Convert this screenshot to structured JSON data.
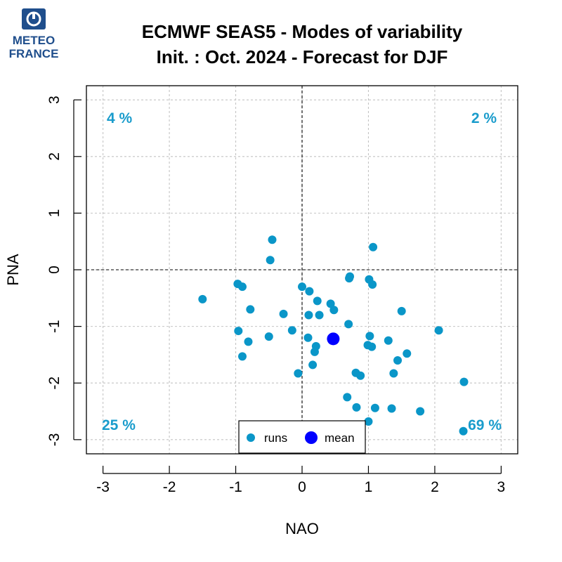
{
  "logo": {
    "line1": "METEO",
    "line2": "FRANCE",
    "color": "#1f4e8c"
  },
  "chart_data": {
    "type": "scatter",
    "title_line1": "ECMWF SEAS5 - Modes of variability",
    "title_line2": "Init. : Oct. 2024 - Forecast for DJF",
    "xlabel": "NAO",
    "ylabel": "PNA",
    "xlim": [
      -3.25,
      3.25
    ],
    "ylim": [
      -3.25,
      3.25
    ],
    "xticks": [
      -3,
      -2,
      -1,
      0,
      1,
      2,
      3
    ],
    "yticks": [
      -3,
      -2,
      -1,
      0,
      1,
      2,
      3
    ],
    "grid": true,
    "reference_lines": {
      "x": 0,
      "y": 0
    },
    "quadrant_labels": {
      "top_left": "4 %",
      "top_right": "2 %",
      "bottom_left": "25 %",
      "bottom_right": "69 %"
    },
    "legend": {
      "position": "bottom-center",
      "runs_label": "runs",
      "mean_label": "mean"
    },
    "colors": {
      "runs": "#0a96c8",
      "mean": "#0000ff",
      "quadrant_text": "#1a9ccc",
      "grid": "#c4c4c4"
    },
    "series": [
      {
        "name": "runs",
        "points": [
          {
            "x": -1.5,
            "y": -0.52
          },
          {
            "x": -0.97,
            "y": -0.25
          },
          {
            "x": -0.9,
            "y": -0.3
          },
          {
            "x": -0.78,
            "y": -0.7
          },
          {
            "x": -0.96,
            "y": -1.08
          },
          {
            "x": -0.81,
            "y": -1.27
          },
          {
            "x": -0.9,
            "y": -1.53
          },
          {
            "x": -0.5,
            "y": -1.18
          },
          {
            "x": -0.28,
            "y": -0.78
          },
          {
            "x": -0.15,
            "y": -1.07
          },
          {
            "x": -0.48,
            "y": 0.17
          },
          {
            "x": -0.45,
            "y": 0.53
          },
          {
            "x": 0.0,
            "y": -0.3
          },
          {
            "x": 0.11,
            "y": -0.38
          },
          {
            "x": 0.1,
            "y": -0.8
          },
          {
            "x": 0.23,
            "y": -0.55
          },
          {
            "x": 0.26,
            "y": -0.8
          },
          {
            "x": 0.43,
            "y": -0.6
          },
          {
            "x": 0.48,
            "y": -0.71
          },
          {
            "x": 0.09,
            "y": -1.2
          },
          {
            "x": 0.21,
            "y": -1.35
          },
          {
            "x": 0.19,
            "y": -1.45
          },
          {
            "x": 0.16,
            "y": -1.68
          },
          {
            "x": -0.06,
            "y": -1.83
          },
          {
            "x": 0.71,
            "y": -0.15
          },
          {
            "x": 0.72,
            "y": -0.12
          },
          {
            "x": 0.7,
            "y": -0.96
          },
          {
            "x": 1.01,
            "y": -0.17
          },
          {
            "x": 1.06,
            "y": -0.26
          },
          {
            "x": 1.07,
            "y": 0.4
          },
          {
            "x": 1.5,
            "y": -0.73
          },
          {
            "x": 1.02,
            "y": -1.17
          },
          {
            "x": 0.99,
            "y": -1.33
          },
          {
            "x": 1.05,
            "y": -1.36
          },
          {
            "x": 1.3,
            "y": -1.25
          },
          {
            "x": 1.44,
            "y": -1.6
          },
          {
            "x": 1.58,
            "y": -1.48
          },
          {
            "x": 2.06,
            "y": -1.07
          },
          {
            "x": 0.81,
            "y": -1.82
          },
          {
            "x": 0.88,
            "y": -1.87
          },
          {
            "x": 1.38,
            "y": -1.83
          },
          {
            "x": 0.68,
            "y": -2.25
          },
          {
            "x": 0.82,
            "y": -2.43
          },
          {
            "x": 1.1,
            "y": -2.44
          },
          {
            "x": 1.35,
            "y": -2.45
          },
          {
            "x": 1.78,
            "y": -2.5
          },
          {
            "x": 1.0,
            "y": -2.68
          },
          {
            "x": 2.44,
            "y": -1.98
          },
          {
            "x": 2.43,
            "y": -2.85
          }
        ]
      },
      {
        "name": "mean",
        "points": [
          {
            "x": 0.47,
            "y": -1.22
          }
        ]
      }
    ]
  }
}
